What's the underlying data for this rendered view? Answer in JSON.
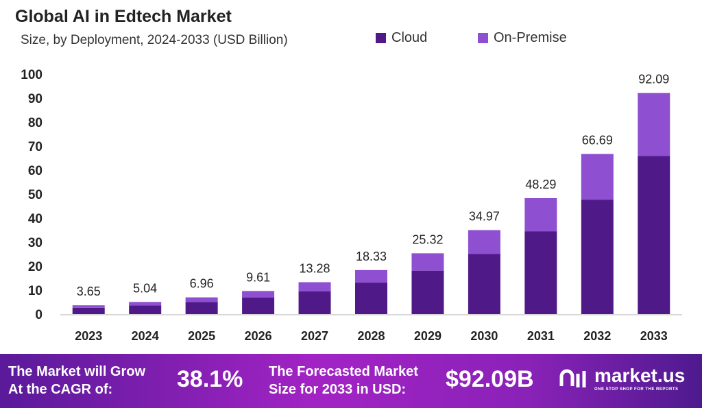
{
  "chart_data": {
    "type": "bar",
    "stacked": true,
    "title": "Global AI in Edtech Market",
    "subtitle": "Size, by Deployment, 2024-2033 (USD Billion)",
    "categories": [
      "2023",
      "2024",
      "2025",
      "2026",
      "2027",
      "2028",
      "2029",
      "2030",
      "2031",
      "2032",
      "2033"
    ],
    "series": [
      {
        "name": "Cloud",
        "color": "#4f1a87",
        "values": [
          2.61,
          3.6,
          4.98,
          6.87,
          9.5,
          13.11,
          18.1,
          25.0,
          34.53,
          47.68,
          65.84
        ]
      },
      {
        "name": "On-Premise",
        "color": "#8e4fd1",
        "values": [
          1.04,
          1.44,
          1.98,
          2.74,
          3.78,
          5.22,
          7.22,
          9.97,
          13.76,
          19.01,
          26.25
        ]
      }
    ],
    "totals": [
      "3.65",
      "5.04",
      "6.96",
      "9.61",
      "13.28",
      "18.33",
      "25.32",
      "34.97",
      "48.29",
      "66.69",
      "92.09"
    ],
    "ylim": [
      0,
      100
    ],
    "yticks": [
      "0",
      "10",
      "20",
      "30",
      "40",
      "50",
      "60",
      "70",
      "80",
      "90",
      "100"
    ],
    "grid": false,
    "legend": "top-right"
  },
  "banner": {
    "cagr_label_1": "The Market will Grow",
    "cagr_label_2": "At the CAGR of:",
    "cagr_value": "38.1%",
    "forecast_label_1": "The Forecasted Market",
    "forecast_label_2": "Size for 2033 in USD:",
    "forecast_value": "$92.09B",
    "logo_name": "market.us",
    "logo_tagline": "ONE STOP SHOP FOR THE REPORTS"
  }
}
